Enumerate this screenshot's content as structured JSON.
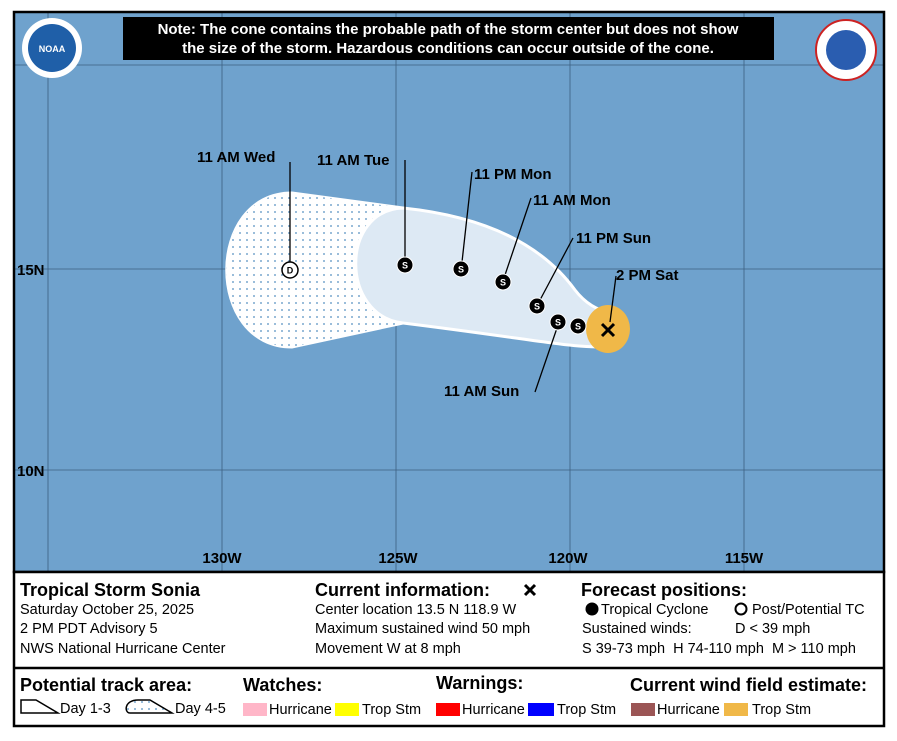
{
  "header": {
    "note_lines": [
      "Note: The cone contains the probable path of the storm center but does not show",
      "the size of the storm. Hazardous conditions can occur outside of the cone."
    ],
    "noaa_logo": "NOAA"
  },
  "map": {
    "lat_labels": [
      "15N",
      "10N"
    ],
    "lon_labels": [
      "130W",
      "125W",
      "120W",
      "115W"
    ],
    "forecast_labels": [
      "11 AM Wed",
      "11 AM Tue",
      "11 PM Mon",
      "11 AM Mon",
      "11 PM Sun",
      "2 PM Sat",
      "11 AM Sun"
    ],
    "marker_letters": {
      "tropical": "S",
      "post": "D"
    }
  },
  "info": {
    "storm": {
      "title": "Tropical Storm Sonia",
      "lines": [
        "Saturday October 25, 2025",
        "2 PM PDT Advisory 5",
        "NWS National Hurricane Center"
      ]
    },
    "current": {
      "title": "Current information:",
      "lines": [
        "Center location 13.5 N 118.9 W",
        "Maximum sustained wind 50 mph",
        "Movement W at 8 mph"
      ]
    },
    "forecast": {
      "title": "Forecast positions:",
      "tropical": "Tropical Cyclone",
      "post": "Post/Potential TC",
      "winds_title": "Sustained winds:",
      "winds_d": "D < 39 mph",
      "winds_shm": "S 39-73 mph  H 74-110 mph  M > 110 mph"
    }
  },
  "legend": {
    "track": {
      "title": "Potential track area:",
      "day13": "Day 1-3",
      "day45": "Day 4-5"
    },
    "watches": {
      "title": "Watches:",
      "hurricane": "Hurricane",
      "tropstm": "Trop Stm"
    },
    "warnings": {
      "title": "Warnings:",
      "hurricane": "Hurricane",
      "tropstm": "Trop Stm"
    },
    "wind": {
      "title": "Current wind field estimate:",
      "hurricane": "Hurricane",
      "tropstm": "Trop Stm"
    }
  }
}
